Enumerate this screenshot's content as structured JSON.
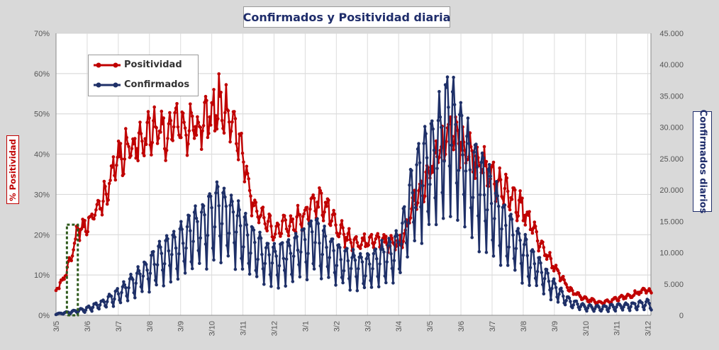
{
  "chart_data": {
    "type": "line",
    "title": "Confirmados  y Positividad diaria",
    "ylabel_left": "% Positividad",
    "ylabel_right": "Confirmados diarios",
    "x_ticks": [
      "3/5",
      "3/6",
      "3/7",
      "3/8",
      "3/9",
      "3/10",
      "3/11",
      "3/12",
      "3/1",
      "3/2",
      "3/3",
      "3/4",
      "3/5",
      "3/6",
      "3/7",
      "3/8",
      "3/9",
      "3/10",
      "3/11",
      "3/12"
    ],
    "y_left_ticks": [
      "0%",
      "10%",
      "20%",
      "30%",
      "40%",
      "50%",
      "60%",
      "70%"
    ],
    "y_left_range": [
      0,
      70
    ],
    "y_right_ticks": [
      "0",
      "5.000",
      "10.000",
      "15.000",
      "20.000",
      "25.000",
      "30.000",
      "35.000",
      "40.000",
      "45.000"
    ],
    "y_right_range": [
      0,
      45000
    ],
    "x_range_months": [
      0,
      19.1
    ],
    "grid": true,
    "legend_position": "top-left",
    "highlight_box_months": [
      0.35,
      0.7
    ],
    "series": [
      {
        "name": "Positividad",
        "axis": "left",
        "color": "#c00000",
        "anchors_month_value": [
          [
            0,
            6
          ],
          [
            0.3,
            10
          ],
          [
            0.5,
            14
          ],
          [
            0.7,
            21
          ],
          [
            1,
            22
          ],
          [
            1.5,
            28
          ],
          [
            2,
            38
          ],
          [
            2.5,
            42
          ],
          [
            3,
            45
          ],
          [
            3.5,
            45
          ],
          [
            4,
            47
          ],
          [
            4.5,
            46
          ],
          [
            5,
            49
          ],
          [
            5.3,
            52
          ],
          [
            5.7,
            47
          ],
          [
            6,
            40
          ],
          [
            6.2,
            30
          ],
          [
            6.5,
            25
          ],
          [
            7,
            21
          ],
          [
            7.5,
            22
          ],
          [
            8,
            25
          ],
          [
            8.3,
            28
          ],
          [
            8.7,
            26
          ],
          [
            9,
            22
          ],
          [
            9.5,
            18
          ],
          [
            10,
            18
          ],
          [
            10.5,
            18
          ],
          [
            11,
            17
          ],
          [
            11.2,
            20
          ],
          [
            11.5,
            28
          ],
          [
            12,
            36
          ],
          [
            12.5,
            42
          ],
          [
            12.7,
            46
          ],
          [
            13,
            42
          ],
          [
            13.5,
            38
          ],
          [
            14,
            34
          ],
          [
            14.5,
            30
          ],
          [
            15,
            26
          ],
          [
            15.5,
            18
          ],
          [
            16,
            12
          ],
          [
            16.5,
            6
          ],
          [
            17,
            4
          ],
          [
            17.5,
            3
          ],
          [
            18,
            4
          ],
          [
            18.5,
            5
          ],
          [
            19,
            6.5
          ],
          [
            19.1,
            5
          ]
        ]
      },
      {
        "name": "Confirmados",
        "axis": "right",
        "color": "#1f3068",
        "anchors_month_value": [
          [
            0,
            200
          ],
          [
            0.5,
            500
          ],
          [
            1,
            1000
          ],
          [
            1.5,
            1800
          ],
          [
            2,
            3200
          ],
          [
            2.5,
            5000
          ],
          [
            3,
            7000
          ],
          [
            3.5,
            9000
          ],
          [
            4,
            10500
          ],
          [
            4.5,
            12500
          ],
          [
            5,
            15000
          ],
          [
            5.5,
            15000
          ],
          [
            6,
            12000
          ],
          [
            6.5,
            9500
          ],
          [
            7,
            8000
          ],
          [
            7.5,
            9000
          ],
          [
            8,
            10500
          ],
          [
            8.3,
            11500
          ],
          [
            8.7,
            10000
          ],
          [
            9,
            8500
          ],
          [
            9.5,
            7500
          ],
          [
            10,
            7000
          ],
          [
            10.5,
            8500
          ],
          [
            11,
            10000
          ],
          [
            11.3,
            15000
          ],
          [
            11.6,
            20000
          ],
          [
            12,
            23000
          ],
          [
            12.3,
            25000
          ],
          [
            12.6,
            28500
          ],
          [
            12.8,
            27000
          ],
          [
            13,
            24000
          ],
          [
            13.5,
            20000
          ],
          [
            14,
            16500
          ],
          [
            14.5,
            12500
          ],
          [
            15,
            9500
          ],
          [
            15.5,
            7000
          ],
          [
            16,
            4000
          ],
          [
            16.5,
            2000
          ],
          [
            17,
            1200
          ],
          [
            17.5,
            1100
          ],
          [
            18,
            1300
          ],
          [
            18.5,
            1500
          ],
          [
            19,
            1800
          ],
          [
            19.1,
            1500
          ]
        ]
      }
    ]
  }
}
